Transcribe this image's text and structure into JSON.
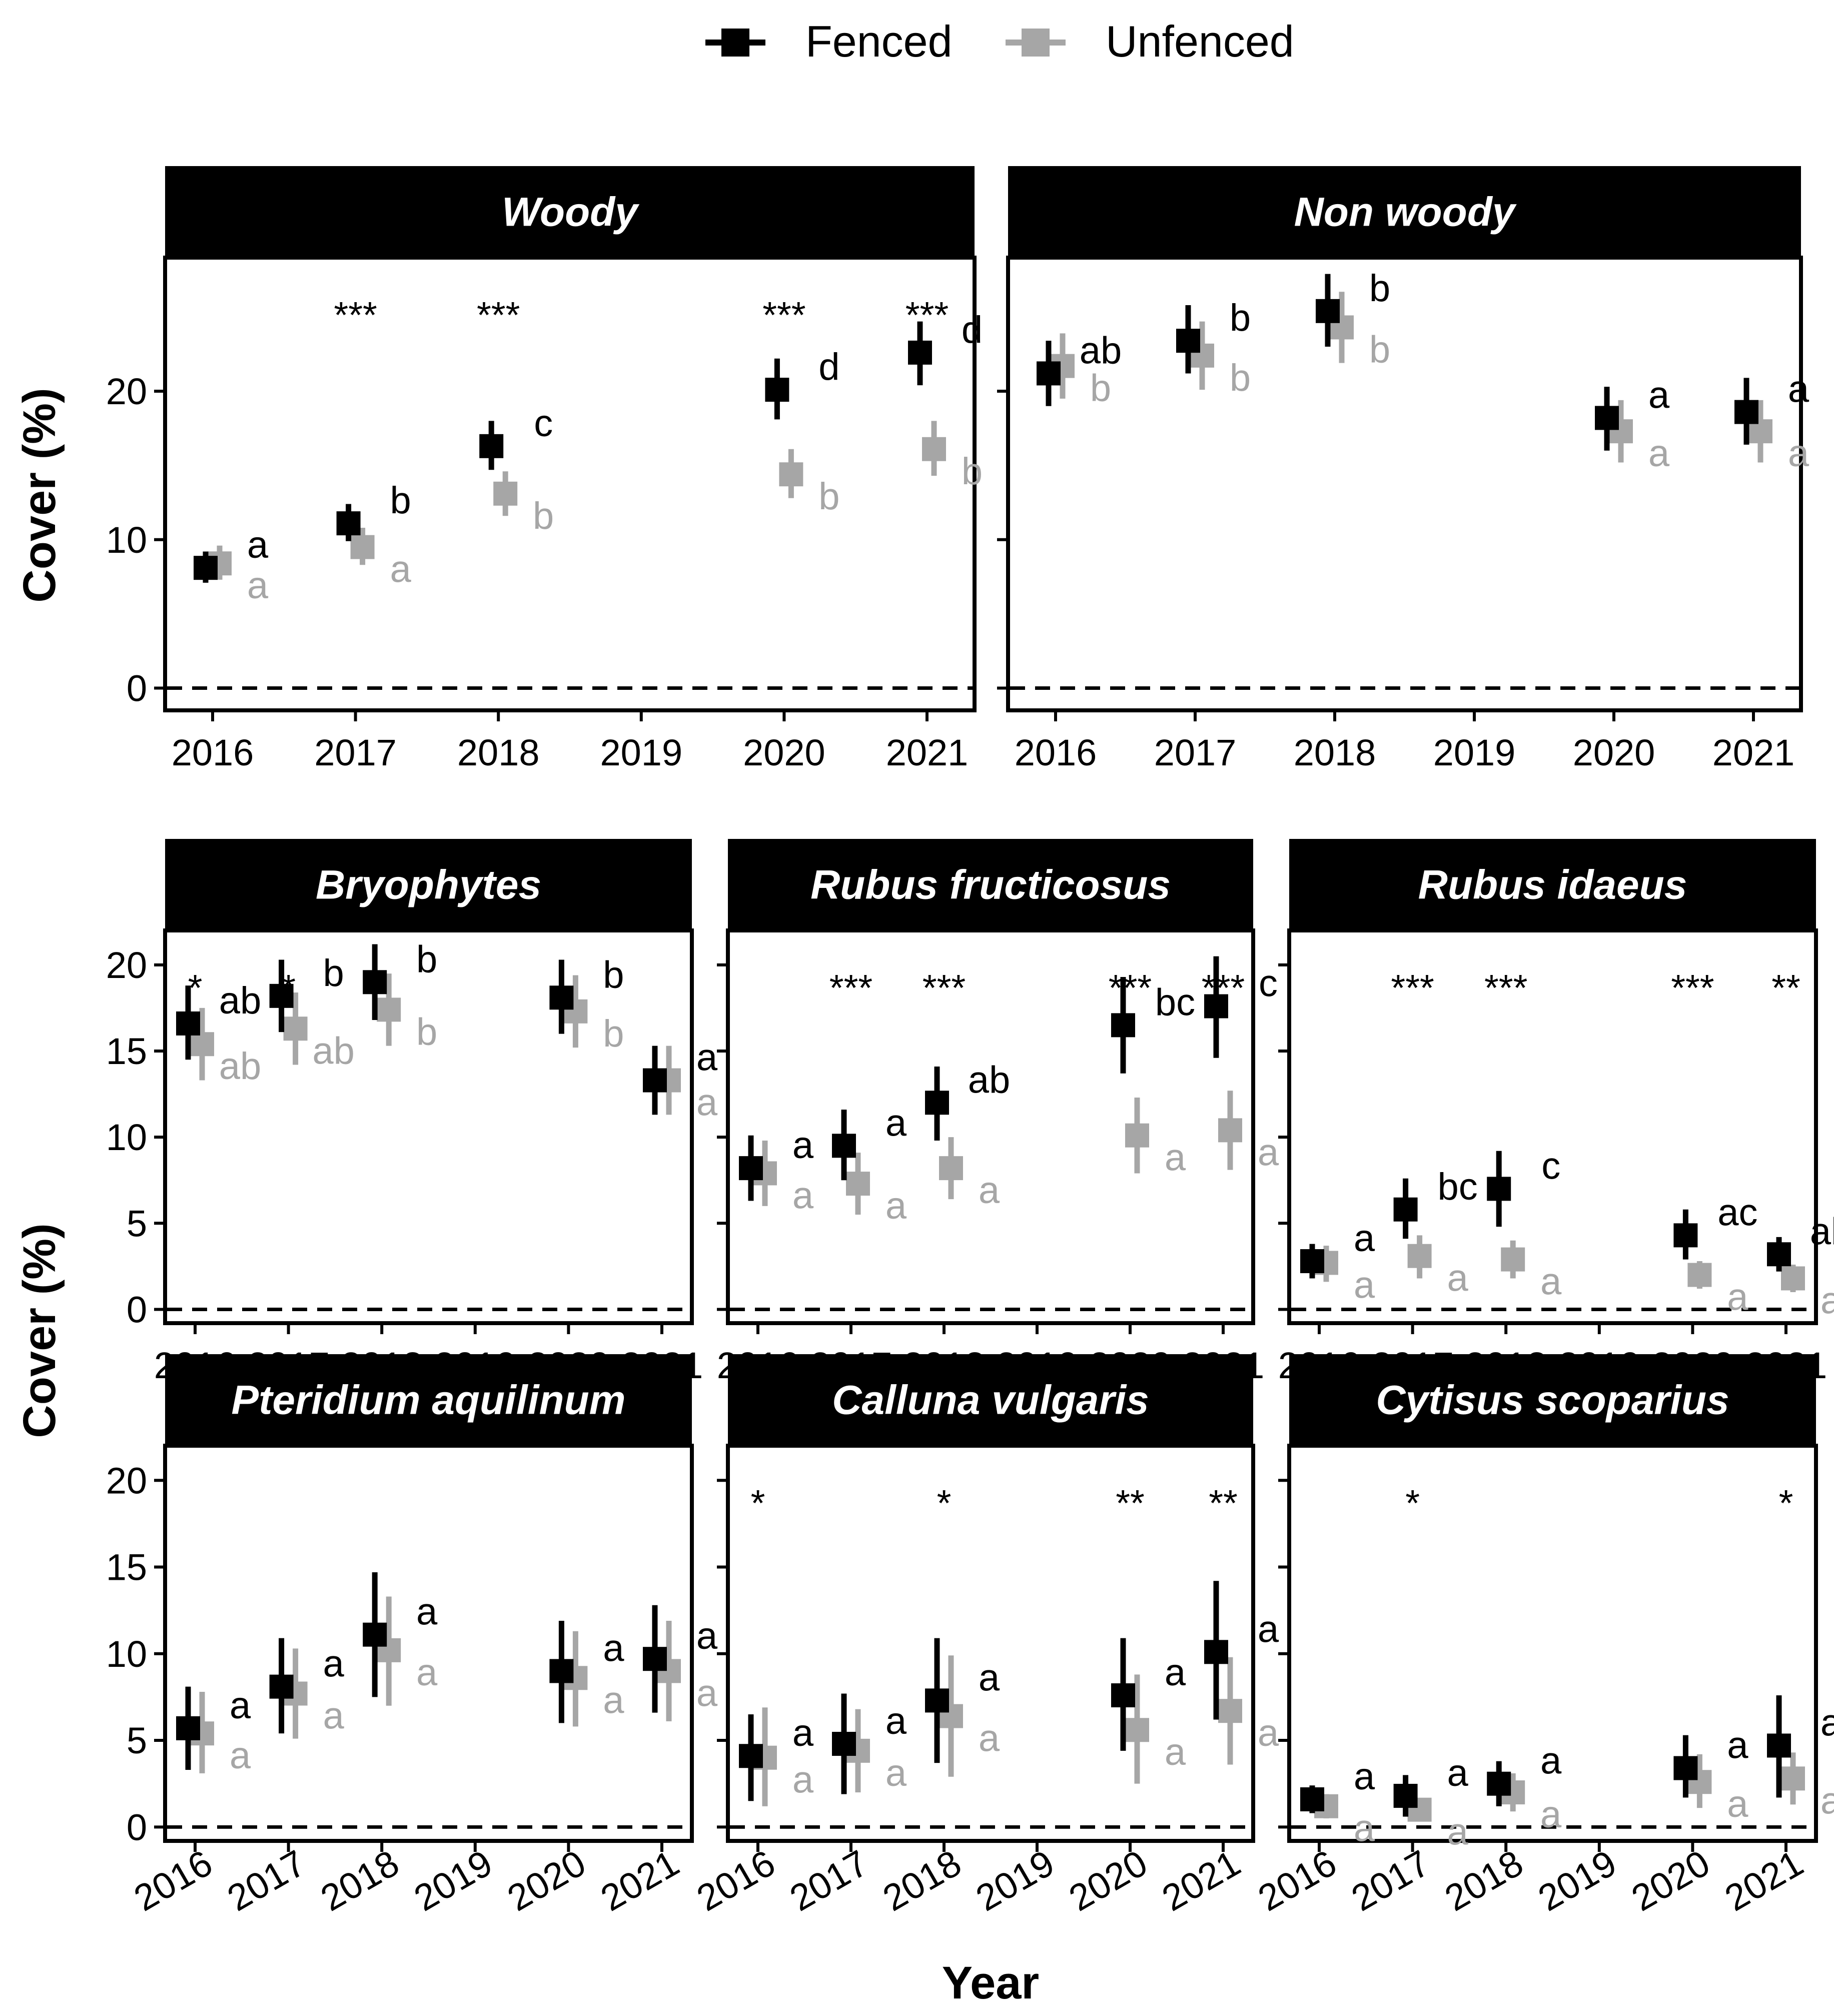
{
  "legend": {
    "position": "top",
    "entries": [
      {
        "name": "Fenced",
        "color": "#000000"
      },
      {
        "name": "Unfenced",
        "color": "#a6a6a6"
      }
    ]
  },
  "axis_labels": {
    "x": "Year",
    "y_top": "Cover (%)",
    "y_bottom": "Cover (%)"
  },
  "chart_data": [
    {
      "type": "scatter",
      "title": "Woody",
      "categories": [
        "2016",
        "2017",
        "2018",
        "2019",
        "2020",
        "2021"
      ],
      "ylim": [
        -1.5,
        29
      ],
      "yticks": [
        0,
        10,
        20
      ],
      "series": [
        {
          "name": "Fenced",
          "points": [
            {
              "x": "2016",
              "y": 8.1,
              "lo": 7.1,
              "hi": 9.2,
              "letter": "a"
            },
            {
              "x": "2017",
              "y": 11.1,
              "lo": 9.9,
              "hi": 12.4,
              "letter": "b"
            },
            {
              "x": "2018",
              "y": 16.3,
              "lo": 14.7,
              "hi": 18.0,
              "letter": "c"
            },
            {
              "x": "2020",
              "y": 20.1,
              "lo": 18.1,
              "hi": 22.2,
              "letter": "d"
            },
            {
              "x": "2021",
              "y": 22.6,
              "lo": 20.4,
              "hi": 24.7,
              "letter": "d"
            }
          ]
        },
        {
          "name": "Unfenced",
          "points": [
            {
              "x": "2016",
              "y": 8.4,
              "lo": 7.3,
              "hi": 9.6,
              "letter": "a"
            },
            {
              "x": "2017",
              "y": 9.5,
              "lo": 8.3,
              "hi": 10.8,
              "letter": "a"
            },
            {
              "x": "2018",
              "y": 13.1,
              "lo": 11.6,
              "hi": 14.6,
              "letter": "b"
            },
            {
              "x": "2020",
              "y": 14.4,
              "lo": 12.8,
              "hi": 16.1,
              "letter": "b"
            },
            {
              "x": "2021",
              "y": 16.1,
              "lo": 14.3,
              "hi": 18.0,
              "letter": "b"
            }
          ]
        }
      ],
      "significance": [
        {
          "x": "2017",
          "label": "***"
        },
        {
          "x": "2018",
          "label": "***"
        },
        {
          "x": "2020",
          "label": "***"
        },
        {
          "x": "2021",
          "label": "***"
        }
      ]
    },
    {
      "type": "scatter",
      "title": "Non woody",
      "categories": [
        "2016",
        "2017",
        "2018",
        "2019",
        "2020",
        "2021"
      ],
      "ylim": [
        -1.5,
        29
      ],
      "yticks": [
        0,
        10,
        20
      ],
      "series": [
        {
          "name": "Fenced",
          "points": [
            {
              "x": "2016",
              "y": 21.2,
              "lo": 19.0,
              "hi": 23.4,
              "letter": "ab"
            },
            {
              "x": "2017",
              "y": 23.4,
              "lo": 21.2,
              "hi": 25.8,
              "letter": "b"
            },
            {
              "x": "2018",
              "y": 25.4,
              "lo": 23.0,
              "hi": 27.9,
              "letter": "b"
            },
            {
              "x": "2020",
              "y": 18.2,
              "lo": 16.0,
              "hi": 20.3,
              "letter": "a"
            },
            {
              "x": "2021",
              "y": 18.6,
              "lo": 16.4,
              "hi": 20.9,
              "letter": "a"
            }
          ]
        },
        {
          "name": "Unfenced",
          "points": [
            {
              "x": "2016",
              "y": 21.7,
              "lo": 19.5,
              "hi": 23.9,
              "letter": "b"
            },
            {
              "x": "2017",
              "y": 22.4,
              "lo": 20.1,
              "hi": 24.7,
              "letter": "b"
            },
            {
              "x": "2018",
              "y": 24.3,
              "lo": 21.9,
              "hi": 26.7,
              "letter": "b"
            },
            {
              "x": "2020",
              "y": 17.3,
              "lo": 15.2,
              "hi": 19.4,
              "letter": "a"
            },
            {
              "x": "2021",
              "y": 17.3,
              "lo": 15.2,
              "hi": 19.4,
              "letter": "a"
            }
          ]
        }
      ],
      "significance": []
    },
    {
      "type": "scatter",
      "title": "Bryophytes",
      "categories": [
        "2016",
        "2017",
        "2018",
        "2019",
        "2020",
        "2021"
      ],
      "ylim": [
        -0.8,
        22
      ],
      "yticks": [
        0,
        5,
        10,
        15,
        20
      ],
      "series": [
        {
          "name": "Fenced",
          "points": [
            {
              "x": "2016",
              "y": 16.6,
              "lo": 14.5,
              "hi": 18.8,
              "letter": "ab"
            },
            {
              "x": "2017",
              "y": 18.2,
              "lo": 16.1,
              "hi": 20.3,
              "letter": "b"
            },
            {
              "x": "2018",
              "y": 19.0,
              "lo": 16.8,
              "hi": 21.2,
              "letter": "b"
            },
            {
              "x": "2020",
              "y": 18.1,
              "lo": 16.0,
              "hi": 20.3,
              "letter": "b"
            },
            {
              "x": "2021",
              "y": 13.3,
              "lo": 11.3,
              "hi": 15.3,
              "letter": "a"
            }
          ]
        },
        {
          "name": "Unfenced",
          "points": [
            {
              "x": "2016",
              "y": 15.4,
              "lo": 13.3,
              "hi": 17.5,
              "letter": "ab"
            },
            {
              "x": "2017",
              "y": 16.3,
              "lo": 14.2,
              "hi": 18.4,
              "letter": "ab"
            },
            {
              "x": "2018",
              "y": 17.4,
              "lo": 15.3,
              "hi": 19.5,
              "letter": "b"
            },
            {
              "x": "2020",
              "y": 17.3,
              "lo": 15.2,
              "hi": 19.4,
              "letter": "b"
            },
            {
              "x": "2021",
              "y": 13.3,
              "lo": 11.3,
              "hi": 15.3,
              "letter": "a"
            }
          ]
        }
      ],
      "significance": [
        {
          "x": "2016",
          "label": "*"
        },
        {
          "x": "2017",
          "label": "*"
        }
      ]
    },
    {
      "type": "scatter",
      "title": "Rubus fructicosus",
      "categories": [
        "2016",
        "2017",
        "2018",
        "2019",
        "2020",
        "2021"
      ],
      "ylim": [
        -0.8,
        22
      ],
      "yticks": [
        0,
        5,
        10,
        15,
        20
      ],
      "series": [
        {
          "name": "Fenced",
          "points": [
            {
              "x": "2016",
              "y": 8.2,
              "lo": 6.3,
              "hi": 10.1,
              "letter": "a"
            },
            {
              "x": "2017",
              "y": 9.5,
              "lo": 7.5,
              "hi": 11.6,
              "letter": "a"
            },
            {
              "x": "2018",
              "y": 12.0,
              "lo": 9.8,
              "hi": 14.1,
              "letter": "ab"
            },
            {
              "x": "2020",
              "y": 16.5,
              "lo": 13.7,
              "hi": 19.3,
              "letter": "bc"
            },
            {
              "x": "2021",
              "y": 17.6,
              "lo": 14.6,
              "hi": 20.5,
              "letter": "c"
            }
          ]
        },
        {
          "name": "Unfenced",
          "points": [
            {
              "x": "2016",
              "y": 7.9,
              "lo": 6.0,
              "hi": 9.8,
              "letter": "a"
            },
            {
              "x": "2017",
              "y": 7.3,
              "lo": 5.5,
              "hi": 9.1,
              "letter": "a"
            },
            {
              "x": "2018",
              "y": 8.2,
              "lo": 6.4,
              "hi": 10.0,
              "letter": "a"
            },
            {
              "x": "2020",
              "y": 10.1,
              "lo": 7.9,
              "hi": 12.3,
              "letter": "a"
            },
            {
              "x": "2021",
              "y": 10.4,
              "lo": 8.1,
              "hi": 12.7,
              "letter": "a"
            }
          ]
        }
      ],
      "significance": [
        {
          "x": "2017",
          "label": "***"
        },
        {
          "x": "2018",
          "label": "***"
        },
        {
          "x": "2020",
          "label": "***"
        },
        {
          "x": "2021",
          "label": "***"
        }
      ]
    },
    {
      "type": "scatter",
      "title": "Rubus idaeus",
      "categories": [
        "2016",
        "2017",
        "2018",
        "2019",
        "2020",
        "2021"
      ],
      "ylim": [
        -0.8,
        22
      ],
      "yticks": [
        0,
        5,
        10,
        15,
        20
      ],
      "series": [
        {
          "name": "Fenced",
          "points": [
            {
              "x": "2016",
              "y": 2.8,
              "lo": 1.8,
              "hi": 3.8,
              "letter": "a"
            },
            {
              "x": "2017",
              "y": 5.8,
              "lo": 4.1,
              "hi": 7.6,
              "letter": "bc"
            },
            {
              "x": "2018",
              "y": 7.0,
              "lo": 4.8,
              "hi": 9.2,
              "letter": "c"
            },
            {
              "x": "2020",
              "y": 4.3,
              "lo": 2.9,
              "hi": 5.8,
              "letter": "ac"
            },
            {
              "x": "2021",
              "y": 3.2,
              "lo": 2.2,
              "hi": 4.2,
              "letter": "ab"
            }
          ]
        },
        {
          "name": "Unfenced",
          "points": [
            {
              "x": "2016",
              "y": 2.7,
              "lo": 1.6,
              "hi": 3.7,
              "letter": "a"
            },
            {
              "x": "2017",
              "y": 3.1,
              "lo": 1.8,
              "hi": 4.3,
              "letter": "a"
            },
            {
              "x": "2018",
              "y": 2.9,
              "lo": 1.8,
              "hi": 4.0,
              "letter": "a"
            },
            {
              "x": "2020",
              "y": 2.0,
              "lo": 1.2,
              "hi": 2.8,
              "letter": "a"
            },
            {
              "x": "2021",
              "y": 1.8,
              "lo": 1.0,
              "hi": 2.6,
              "letter": "a"
            }
          ]
        }
      ],
      "significance": [
        {
          "x": "2017",
          "label": "***"
        },
        {
          "x": "2018",
          "label": "***"
        },
        {
          "x": "2020",
          "label": "***"
        },
        {
          "x": "2021",
          "label": "**"
        }
      ]
    },
    {
      "type": "scatter",
      "title": "Pteridium  aquilinum",
      "categories": [
        "2016",
        "2017",
        "2018",
        "2019",
        "2020",
        "2021"
      ],
      "ylim": [
        -0.8,
        22
      ],
      "yticks": [
        0,
        5,
        10,
        15,
        20
      ],
      "series": [
        {
          "name": "Fenced",
          "points": [
            {
              "x": "2016",
              "y": 5.7,
              "lo": 3.3,
              "hi": 8.1,
              "letter": "a"
            },
            {
              "x": "2017",
              "y": 8.1,
              "lo": 5.4,
              "hi": 10.9,
              "letter": "a"
            },
            {
              "x": "2018",
              "y": 11.1,
              "lo": 7.5,
              "hi": 14.7,
              "letter": "a"
            },
            {
              "x": "2020",
              "y": 9.0,
              "lo": 6.0,
              "hi": 11.9,
              "letter": "a"
            },
            {
              "x": "2021",
              "y": 9.7,
              "lo": 6.6,
              "hi": 12.8,
              "letter": "a"
            }
          ]
        },
        {
          "name": "Unfenced",
          "points": [
            {
              "x": "2016",
              "y": 5.4,
              "lo": 3.1,
              "hi": 7.8,
              "letter": "a"
            },
            {
              "x": "2017",
              "y": 7.7,
              "lo": 5.1,
              "hi": 10.3,
              "letter": "a"
            },
            {
              "x": "2018",
              "y": 10.2,
              "lo": 7.0,
              "hi": 13.3,
              "letter": "a"
            },
            {
              "x": "2020",
              "y": 8.6,
              "lo": 5.8,
              "hi": 11.3,
              "letter": "a"
            },
            {
              "x": "2021",
              "y": 9.0,
              "lo": 6.1,
              "hi": 11.9,
              "letter": "a"
            }
          ]
        }
      ],
      "significance": []
    },
    {
      "type": "scatter",
      "title": "Calluna vulgaris",
      "categories": [
        "2016",
        "2017",
        "2018",
        "2019",
        "2020",
        "2021"
      ],
      "ylim": [
        -0.8,
        22
      ],
      "yticks": [
        0,
        5,
        10,
        15,
        20
      ],
      "series": [
        {
          "name": "Fenced",
          "points": [
            {
              "x": "2016",
              "y": 4.1,
              "lo": 1.5,
              "hi": 6.5,
              "letter": "a"
            },
            {
              "x": "2017",
              "y": 4.8,
              "lo": 1.9,
              "hi": 7.7,
              "letter": "a"
            },
            {
              "x": "2018",
              "y": 7.3,
              "lo": 3.7,
              "hi": 10.9,
              "letter": "a"
            },
            {
              "x": "2020",
              "y": 7.6,
              "lo": 4.4,
              "hi": 10.9,
              "letter": "a"
            },
            {
              "x": "2021",
              "y": 10.1,
              "lo": 6.2,
              "hi": 14.2,
              "letter": "a"
            }
          ]
        },
        {
          "name": "Unfenced",
          "points": [
            {
              "x": "2016",
              "y": 4.0,
              "lo": 1.2,
              "hi": 6.9,
              "letter": "a"
            },
            {
              "x": "2017",
              "y": 4.4,
              "lo": 2.0,
              "hi": 6.8,
              "letter": "a"
            },
            {
              "x": "2018",
              "y": 6.4,
              "lo": 2.9,
              "hi": 9.9,
              "letter": "a"
            },
            {
              "x": "2020",
              "y": 5.6,
              "lo": 2.5,
              "hi": 8.8,
              "letter": "a"
            },
            {
              "x": "2021",
              "y": 6.7,
              "lo": 3.6,
              "hi": 9.8,
              "letter": "a"
            }
          ]
        }
      ],
      "significance": [
        {
          "x": "2016",
          "label": "*"
        },
        {
          "x": "2018",
          "label": "*"
        },
        {
          "x": "2020",
          "label": "**"
        },
        {
          "x": "2021",
          "label": "**"
        }
      ]
    },
    {
      "type": "scatter",
      "title": "Cytisus scoparius",
      "categories": [
        "2016",
        "2017",
        "2018",
        "2019",
        "2020",
        "2021"
      ],
      "ylim": [
        -0.8,
        22
      ],
      "yticks": [
        0,
        5,
        10,
        15,
        20
      ],
      "series": [
        {
          "name": "Fenced",
          "points": [
            {
              "x": "2016",
              "y": 1.6,
              "lo": 0.8,
              "hi": 2.4,
              "letter": "a"
            },
            {
              "x": "2017",
              "y": 1.8,
              "lo": 0.6,
              "hi": 3.0,
              "letter": "a"
            },
            {
              "x": "2018",
              "y": 2.5,
              "lo": 1.2,
              "hi": 3.8,
              "letter": "a"
            },
            {
              "x": "2020",
              "y": 3.4,
              "lo": 1.7,
              "hi": 5.3,
              "letter": "a"
            },
            {
              "x": "2021",
              "y": 4.7,
              "lo": 1.7,
              "hi": 7.6,
              "letter": "a"
            }
          ]
        },
        {
          "name": "Unfenced",
          "points": [
            {
              "x": "2016",
              "y": 1.2,
              "lo": 0.5,
              "hi": 1.9,
              "letter": "a"
            },
            {
              "x": "2017",
              "y": 1.0,
              "lo": 0.4,
              "hi": 1.6,
              "letter": "a"
            },
            {
              "x": "2018",
              "y": 2.0,
              "lo": 0.9,
              "hi": 3.1,
              "letter": "a"
            },
            {
              "x": "2020",
              "y": 2.6,
              "lo": 1.1,
              "hi": 4.2,
              "letter": "a"
            },
            {
              "x": "2021",
              "y": 2.8,
              "lo": 1.3,
              "hi": 4.3,
              "letter": "a"
            }
          ]
        }
      ],
      "significance": [
        {
          "x": "2017",
          "label": "*"
        },
        {
          "x": "2021",
          "label": "*"
        }
      ]
    }
  ]
}
